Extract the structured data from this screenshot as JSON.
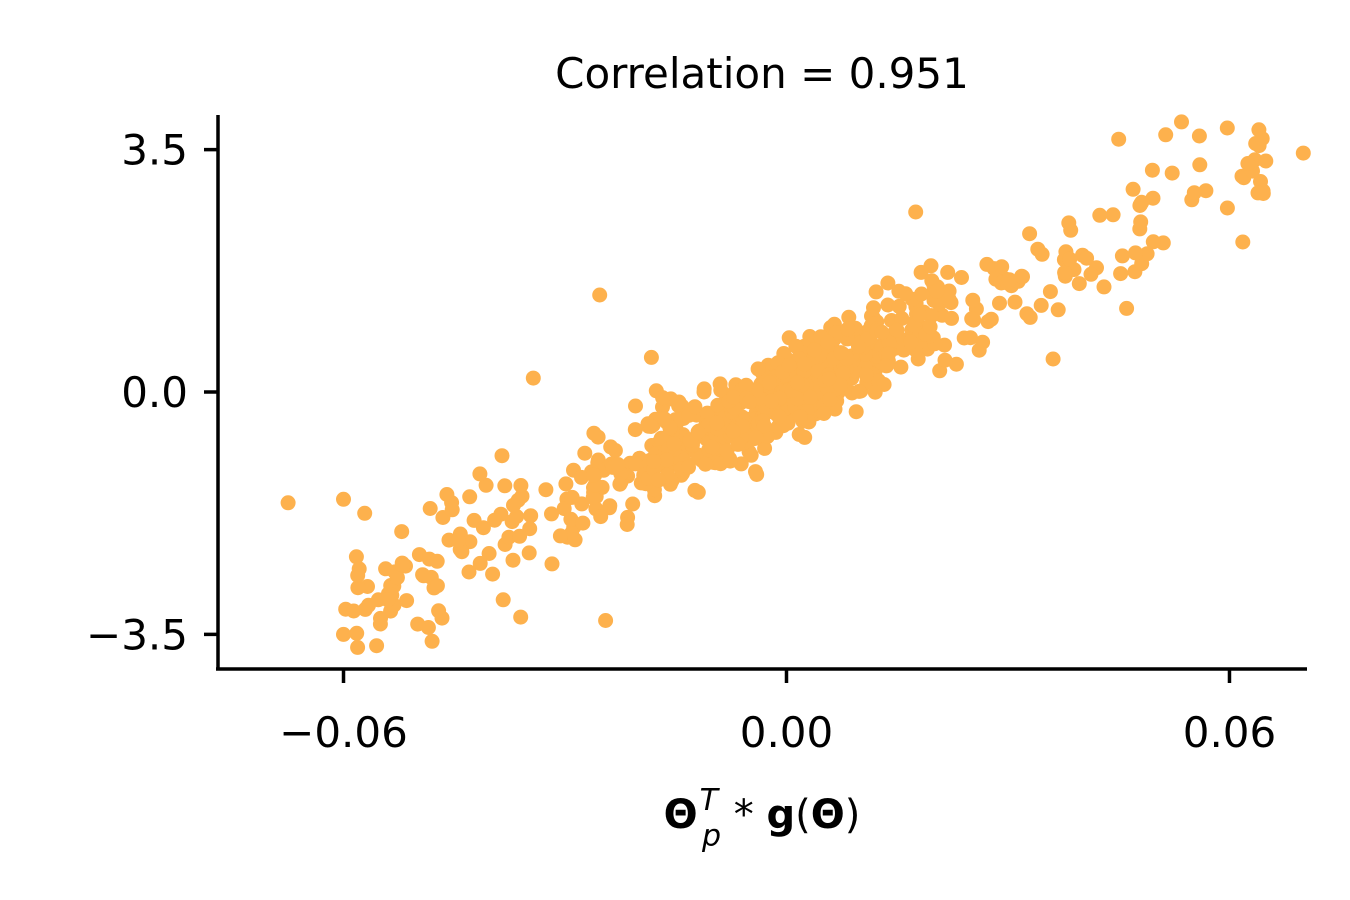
{
  "chart_data": {
    "type": "scatter",
    "title": "Correlation = 0.951",
    "xlabel_parts": {
      "theta": "Θ",
      "superscript": "T",
      "subscript": "p",
      "operator": " * ",
      "func": "g",
      "open": "(",
      "arg": "Θ",
      "close": ")"
    },
    "ylabel": "",
    "xlim": [
      -0.077,
      0.0705
    ],
    "ylim": [
      -4.0,
      4.0
    ],
    "x_ticks": [
      -0.06,
      0.0,
      0.06
    ],
    "x_tick_labels": [
      "−0.06",
      "0.00",
      "0.06"
    ],
    "y_ticks": [
      3.5,
      0.0,
      -3.5
    ],
    "y_tick_labels": [
      "3.5",
      "0.0",
      "−3.5"
    ],
    "point_color": "#fdb14d",
    "axis_color": "#000000",
    "grid": false,
    "correlation": 0.951,
    "approx_point_count": 800,
    "series": [
      {
        "name": "points",
        "outliers": [
          {
            "x": -0.0675,
            "y": -1.6
          },
          {
            "x": -0.06,
            "y": -1.55
          },
          {
            "x": -0.06,
            "y": -3.5
          },
          {
            "x": -0.055,
            "y": -3.35
          },
          {
            "x": -0.054,
            "y": -3.0
          },
          {
            "x": -0.052,
            "y": -2.5
          },
          {
            "x": -0.0485,
            "y": -3.4
          },
          {
            "x": -0.048,
            "y": -3.6
          },
          {
            "x": -0.046,
            "y": -1.48
          },
          {
            "x": -0.043,
            "y": -2.6
          },
          {
            "x": -0.0343,
            "y": 0.2
          },
          {
            "x": -0.0253,
            "y": 1.4
          },
          {
            "x": -0.0245,
            "y": -3.3
          },
          {
            "x": -0.0183,
            "y": 0.5
          },
          {
            "x": -0.036,
            "y": -3.25
          },
          {
            "x": 0.0175,
            "y": 2.6
          },
          {
            "x": 0.045,
            "y": 3.65
          },
          {
            "x": 0.0535,
            "y": 3.9
          },
          {
            "x": 0.07,
            "y": 3.45
          },
          {
            "x": 0.0625,
            "y": 3.3
          },
          {
            "x": 0.0345,
            "y": 1.25
          }
        ]
      }
    ]
  }
}
